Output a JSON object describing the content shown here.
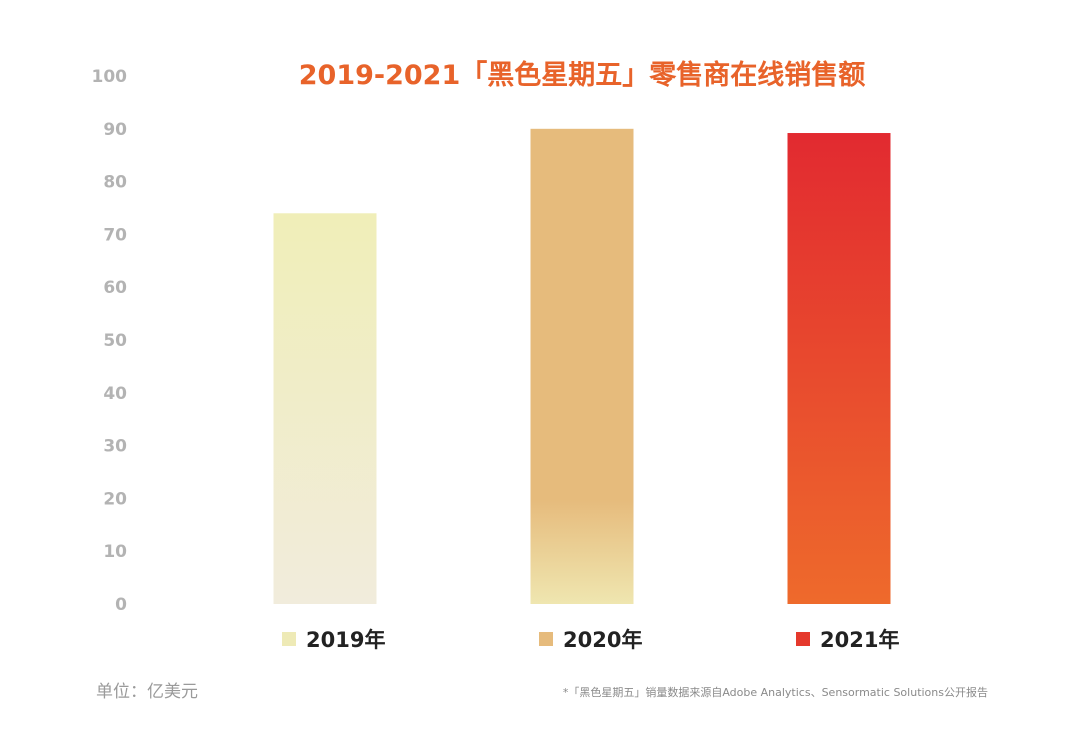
{
  "chart_data": {
    "type": "bar",
    "title": "2019-2021「黑色星期五」零售商在线销售额",
    "categories": [
      "2019年",
      "2020年",
      "2021年"
    ],
    "values": [
      74,
      90,
      89.2
    ],
    "ylim": [
      0,
      100
    ],
    "yticks": [
      0,
      10,
      20,
      30,
      40,
      50,
      60,
      70,
      80,
      90,
      100
    ],
    "grid": false,
    "legend_position": "bottom",
    "unit_label": "单位：亿美元",
    "footnote": "*「黑色星期五」销量数据来源自Adobe Analytics、Sensormatic Solutions公开报告",
    "colors": {
      "title": "#e8632a",
      "bar_gradients": [
        [
          "#f0eeb8",
          "#f1ecdc"
        ],
        [
          "#e6bb7c",
          "#efe6b0"
        ],
        [
          "#e22a30",
          "#ee6a2c"
        ]
      ],
      "legend_swatches": [
        "#eeeab6",
        "#e6bb7c",
        "#e5392c"
      ]
    }
  }
}
